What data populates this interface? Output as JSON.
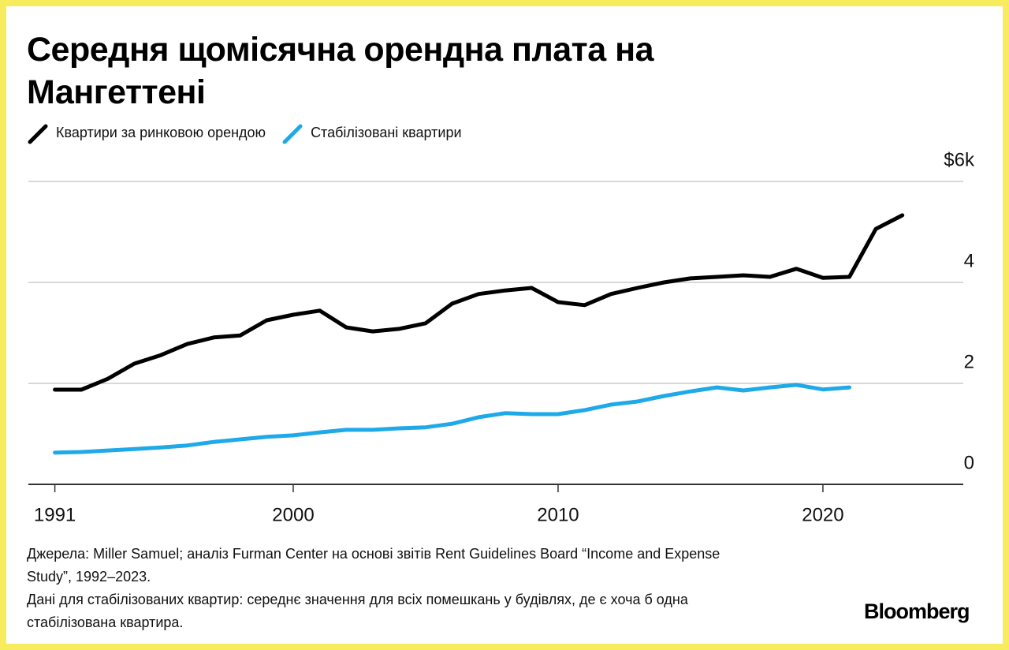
{
  "chart_data": {
    "type": "line",
    "title": "Середня щомісячна орендна плата на Мангеттені",
    "x": [
      1991,
      1992,
      1993,
      1994,
      1995,
      1996,
      1997,
      1998,
      1999,
      2000,
      2001,
      2002,
      2003,
      2004,
      2005,
      2006,
      2007,
      2008,
      2009,
      2010,
      2011,
      2012,
      2013,
      2014,
      2015,
      2016,
      2017,
      2018,
      2019,
      2020,
      2021,
      2022,
      2023
    ],
    "series": [
      {
        "name": "Квартири за ринковою орендою",
        "color": "#000000",
        "values": [
          1.875,
          1.875,
          2.09,
          2.39,
          2.56,
          2.78,
          2.91,
          2.95,
          3.25,
          3.36,
          3.44,
          3.11,
          3.03,
          3.08,
          3.19,
          3.58,
          3.77,
          3.84,
          3.89,
          3.61,
          3.55,
          3.77,
          3.89,
          4.0,
          4.08,
          4.11,
          4.14,
          4.11,
          4.27,
          4.09,
          4.11,
          5.06,
          5.33
        ]
      },
      {
        "name": "Стабілізовані квартири",
        "color": "#1fa9e8",
        "values": [
          0.63,
          0.64,
          0.67,
          0.7,
          0.73,
          0.77,
          0.84,
          0.89,
          0.94,
          0.97,
          1.03,
          1.08,
          1.08,
          1.11,
          1.13,
          1.2,
          1.33,
          1.41,
          1.39,
          1.39,
          1.47,
          1.58,
          1.64,
          1.75,
          1.84,
          1.92,
          1.86,
          1.92,
          1.97,
          1.88,
          1.92,
          null,
          null
        ]
      }
    ],
    "xlim": [
      1990,
      2025.3
    ],
    "xticks": [
      1991,
      2000,
      2010,
      2020
    ],
    "ylim": [
      0,
      6
    ],
    "yticks": [
      0,
      2,
      4,
      {
        "value": 6,
        "label": "$6k"
      }
    ],
    "grid": true,
    "source": "Джерела: Miller Samuel; аналіз Furman Center на основі звітів Rent Guidelines Board “Income and Expense Study”, 1992–2023.",
    "note": "Дані для стабілізованих квартир: середнє значення для всіх помешкань у будівлях, де є хоча б одна стабілізована квартира.",
    "brand": "Bloomberg"
  }
}
